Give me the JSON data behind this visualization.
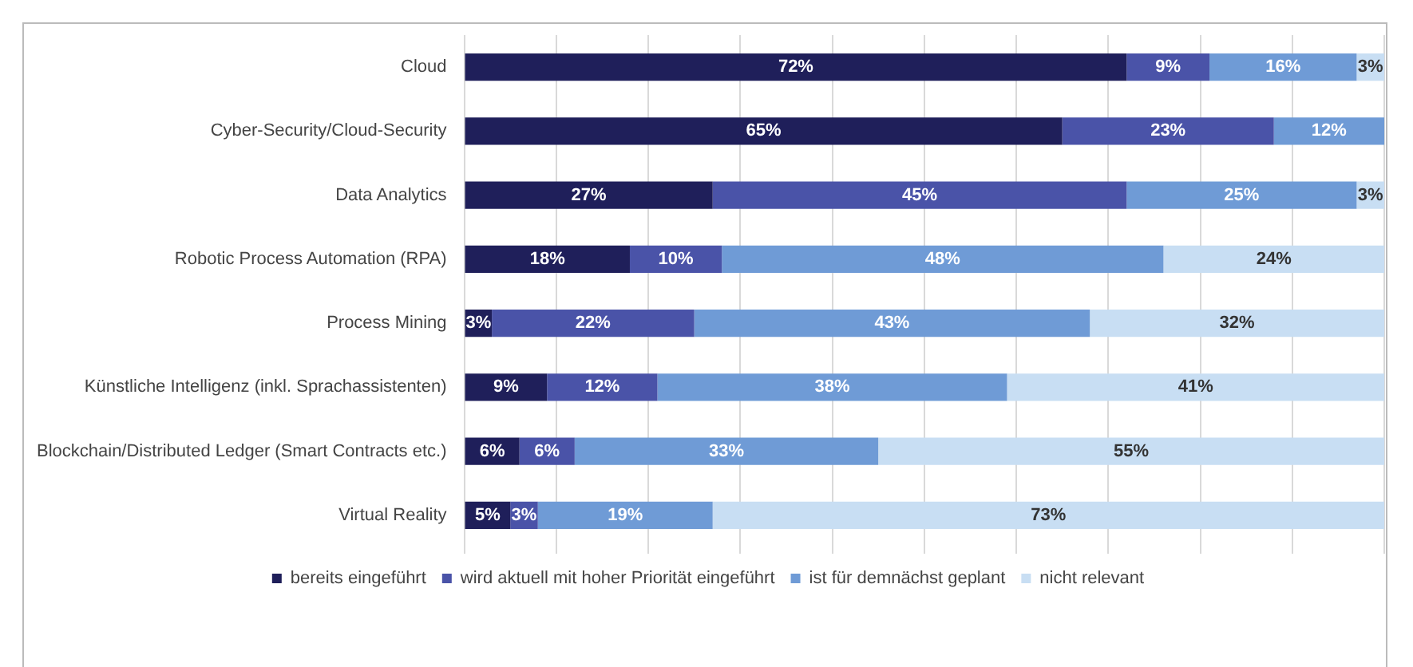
{
  "chart_data": {
    "type": "bar",
    "orientation": "horizontal",
    "stacked": true,
    "categories": [
      "Cloud",
      "Cyber-Security/Cloud-Security",
      "Data Analytics",
      "Robotic Process Automation (RPA)",
      "Process Mining",
      "Künstliche Intelligenz (inkl. Sprachassistenten)",
      "Blockchain/Distributed Ledger (Smart Contracts etc.)",
      "Virtual Reality"
    ],
    "series": [
      {
        "name": "bereits eingeführt",
        "color": "#1f1f5a",
        "values": [
          72,
          65,
          27,
          18,
          3,
          9,
          6,
          5
        ],
        "value_labels": [
          "72%",
          "65%",
          "27%",
          "18%",
          "3%",
          "9%",
          "6%",
          "5%"
        ]
      },
      {
        "name": "wird aktuell mit hoher Priorität eingeführt",
        "color": "#4a53a8",
        "values": [
          9,
          23,
          45,
          10,
          22,
          12,
          6,
          3
        ],
        "value_labels": [
          "9%",
          "23%",
          "45%",
          "10%",
          "22%",
          "12%",
          "6%",
          "3%"
        ]
      },
      {
        "name": "ist für demnächst geplant",
        "color": "#6f9bd6",
        "values": [
          16,
          12,
          25,
          48,
          43,
          38,
          33,
          19
        ],
        "value_labels": [
          "16%",
          "12%",
          "25%",
          "48%",
          "43%",
          "38%",
          "33%",
          "19%"
        ]
      },
      {
        "name": "nicht relevant",
        "color": "#c8def3",
        "values": [
          3,
          null,
          3,
          24,
          32,
          41,
          55,
          73
        ],
        "value_labels": [
          "3%",
          null,
          "3%",
          "24%",
          "32%",
          "41%",
          "55%",
          "73%"
        ]
      }
    ],
    "xlim": [
      0,
      100
    ],
    "xticks": [
      {
        "value": 0,
        "label": null
      },
      {
        "value": 10,
        "label": null
      },
      {
        "value": 20,
        "label": null
      },
      {
        "value": 30,
        "label": null
      },
      {
        "value": 40,
        "label": null
      },
      {
        "value": 50,
        "label": null
      },
      {
        "value": 60,
        "label": null
      },
      {
        "value": 70,
        "label": null
      },
      {
        "value": 80,
        "label": null
      },
      {
        "value": 90,
        "label": null
      },
      {
        "value": 100,
        "label": null
      }
    ],
    "grid": "x",
    "legend": "bottom",
    "tick_labels": "y"
  }
}
